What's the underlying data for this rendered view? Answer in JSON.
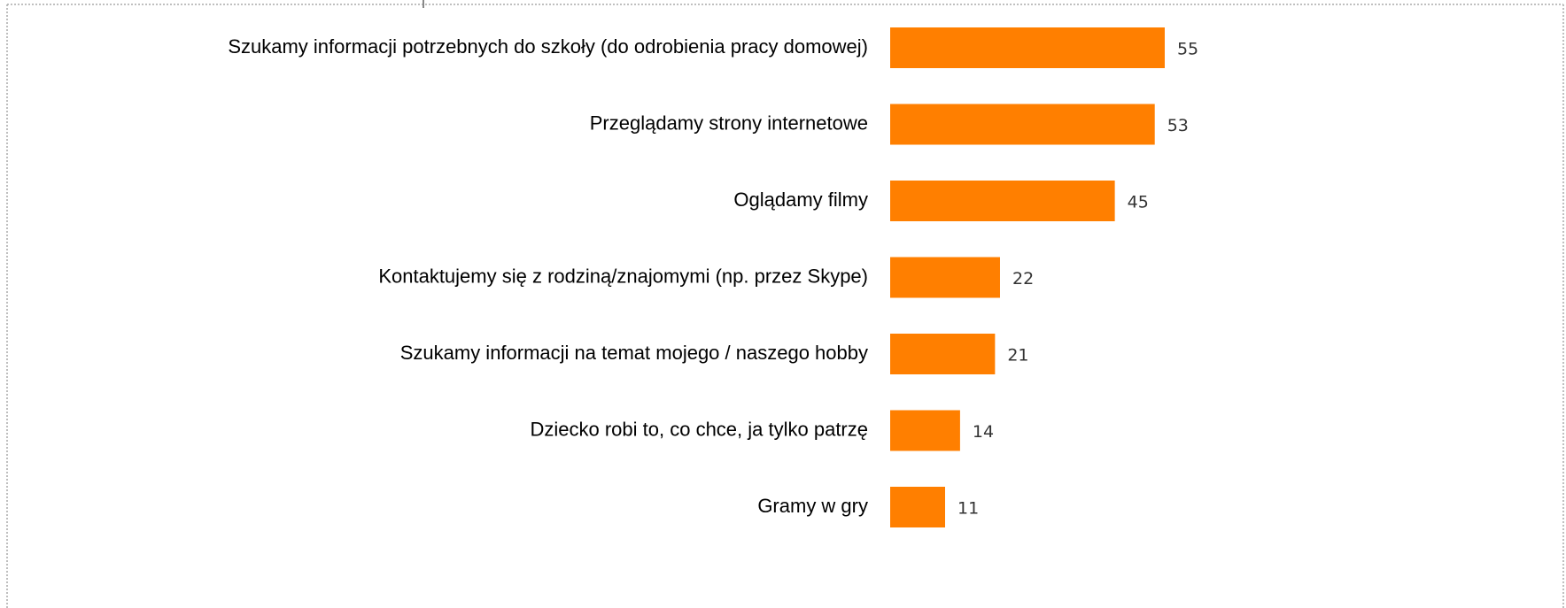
{
  "chart_data": {
    "type": "bar",
    "categories": [
      "Szukamy informacji potrzebnych do szkoły (do odrobienia pracy domowej)",
      "Przeglądamy strony internetowe",
      "Oglądamy filmy",
      "Kontaktujemy się z rodziną/znajomymi (np. przez Skype)",
      "Szukamy informacji na temat mojego / naszego hobby",
      "Dziecko robi to, co chce, ja tylko patrzę",
      "Gramy w gry"
    ],
    "values": [
      55,
      53,
      45,
      22,
      21,
      14,
      11
    ],
    "color": "#ff7f00"
  }
}
